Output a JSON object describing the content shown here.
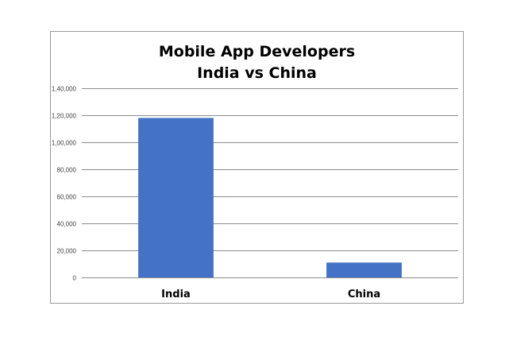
{
  "chart_data": {
    "type": "bar",
    "title": "Mobile App Developers",
    "subtitle": "India vs China",
    "xlabel": "",
    "ylabel": "",
    "categories": [
      "India",
      "China"
    ],
    "values": [
      118000,
      11000
    ],
    "ylim": [
      0,
      140000
    ],
    "yticks": [
      0,
      20000,
      40000,
      60000,
      80000,
      100000,
      120000,
      140000
    ],
    "ytick_labels": [
      "0",
      "20,000",
      "40,000",
      "60,000",
      "80,000",
      "1,00,000",
      "1,20,000",
      "1,40,000"
    ],
    "grid": true,
    "legend": "none",
    "bar_color": "#4472C4",
    "grid_color": "#8c8c8c"
  }
}
